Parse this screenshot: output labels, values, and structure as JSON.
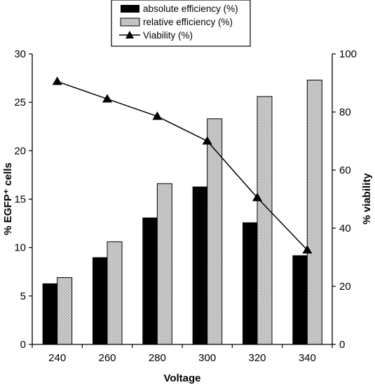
{
  "chart_data": {
    "type": "bar",
    "categories": [
      "240",
      "260",
      "280",
      "300",
      "320",
      "340"
    ],
    "series": [
      {
        "name": "absolute efficiency (%)",
        "kind": "bar",
        "axis": "left",
        "color": "#000000",
        "values": [
          6.3,
          9.0,
          13.1,
          16.3,
          12.6,
          9.2
        ]
      },
      {
        "name": "relative efficiency (%)",
        "kind": "bar",
        "axis": "left",
        "color": "#c8c8c8",
        "values": [
          6.9,
          10.6,
          16.6,
          23.3,
          25.6,
          27.3
        ]
      },
      {
        "name": "Viability (%)",
        "kind": "line",
        "marker": "triangle",
        "axis": "right",
        "color": "#000000",
        "values": [
          90.5,
          84.5,
          78.5,
          70,
          50.5,
          32.5
        ]
      }
    ],
    "xlabel": "Voltage",
    "ylabel_left": "% EGFP⁺ cells",
    "ylabel_right": "% viability",
    "ylim_left": [
      0,
      30
    ],
    "ylim_right": [
      0,
      100
    ],
    "yticks_left": [
      "0",
      "5",
      "10",
      "15",
      "20",
      "25",
      "30"
    ],
    "yticks_right": [
      "0",
      "20",
      "40",
      "60",
      "80",
      "100"
    ],
    "grid": false,
    "legend_position": "top-center"
  }
}
